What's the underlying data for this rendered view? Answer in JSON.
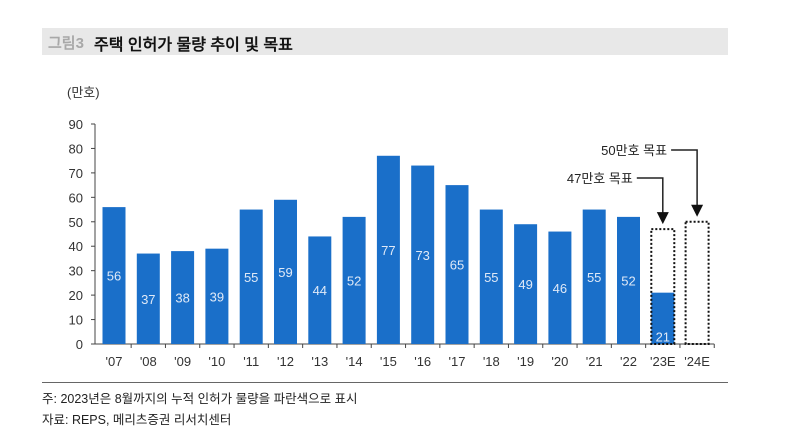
{
  "header": {
    "figure_number": "그림3",
    "title": "주택 인허가 물량 추이 및 목표"
  },
  "chart_data": {
    "type": "bar",
    "ylabel": "(만호)",
    "ylim": [
      0,
      90
    ],
    "yticks": [
      0,
      10,
      20,
      30,
      40,
      50,
      60,
      70,
      80,
      90
    ],
    "categories": [
      "'07",
      "'08",
      "'09",
      "'10",
      "'11",
      "'12",
      "'13",
      "'14",
      "'15",
      "'16",
      "'17",
      "'18",
      "'19",
      "'20",
      "'21",
      "'22",
      "'23E",
      "'24E"
    ],
    "values": [
      56,
      37,
      38,
      39,
      55,
      59,
      44,
      52,
      77,
      73,
      65,
      55,
      49,
      46,
      55,
      52,
      21,
      null
    ],
    "targets": [
      {
        "category": "'23E",
        "value": 47,
        "label": "47만호 목표"
      },
      {
        "category": "'24E",
        "value": 50,
        "label": "50만호 목표"
      }
    ],
    "bar_color": "#1a6fc9",
    "grid": false
  },
  "footer": {
    "note": "주: 2023년은 8월까지의 누적 인허가 물량을 파란색으로 표시",
    "source": "자료: REPS, 메리츠증권 리서치센터"
  }
}
